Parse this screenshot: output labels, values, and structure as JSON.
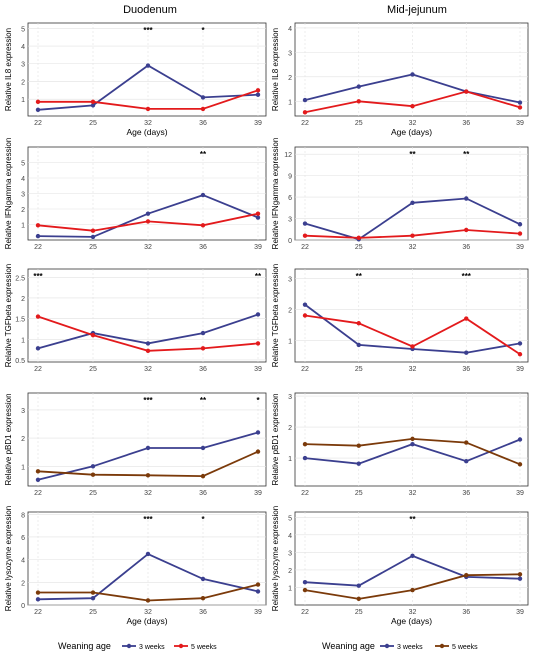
{
  "figure": {
    "col_titles": [
      "Duodenum",
      "Mid-jejunum"
    ],
    "legend": {
      "title": "Weaning age",
      "rows": [
        {
          "items": [
            {
              "label": "3 weeks",
              "color": "#3b3f8f"
            },
            {
              "label": "5 weeks",
              "color": "#e31a1c"
            }
          ]
        },
        {
          "items": [
            {
              "label": "3 weeks",
              "color": "#3b3f8f"
            },
            {
              "label": "5 weeks",
              "color": "#7b3a0a"
            }
          ]
        }
      ]
    }
  },
  "chart_data": [
    {
      "type": "line",
      "title": "Duodenum",
      "xlabel": "Age (days)",
      "ylabel": "Relative IL8 expression",
      "categories": [
        "22",
        "25",
        "32",
        "36",
        "39"
      ],
      "ylim": [
        0.05,
        5.3
      ],
      "yticks": [
        1,
        2,
        3,
        4,
        5
      ],
      "series": [
        {
          "name": "3 weeks",
          "color": "#3b3f8f",
          "values": [
            0.4,
            0.65,
            2.9,
            1.1,
            1.25
          ]
        },
        {
          "name": "5 weeks",
          "color": "#e31a1c",
          "values": [
            0.85,
            0.85,
            0.45,
            0.45,
            1.5
          ]
        }
      ],
      "annotations": [
        {
          "x": "32",
          "text": "***"
        },
        {
          "x": "36",
          "text": "*"
        }
      ]
    },
    {
      "type": "line",
      "title": "Mid-jejunum",
      "xlabel": "Age (days)",
      "ylabel": "Relative IL8 expression",
      "categories": [
        "22",
        "25",
        "32",
        "36",
        "39"
      ],
      "ylim": [
        0.4,
        4.2
      ],
      "yticks": [
        1,
        2,
        3,
        4
      ],
      "series": [
        {
          "name": "3 weeks",
          "color": "#3b3f8f",
          "values": [
            1.05,
            1.6,
            2.1,
            1.4,
            0.95
          ]
        },
        {
          "name": "5 weeks",
          "color": "#e31a1c",
          "values": [
            0.55,
            1.0,
            0.8,
            1.4,
            0.75
          ]
        }
      ],
      "annotations": []
    },
    {
      "type": "line",
      "title": "Duodenum",
      "xlabel": "",
      "ylabel": "Relative IFNgamma expression",
      "categories": [
        "22",
        "25",
        "32",
        "36",
        "39"
      ],
      "ylim": [
        0,
        6
      ],
      "yticks": [
        1,
        2,
        3,
        4,
        5
      ],
      "series": [
        {
          "name": "3 weeks",
          "color": "#3b3f8f",
          "values": [
            0.25,
            0.2,
            1.7,
            2.9,
            1.45
          ]
        },
        {
          "name": "5 weeks",
          "color": "#e31a1c",
          "values": [
            0.95,
            0.6,
            1.2,
            0.95,
            1.7
          ]
        }
      ],
      "annotations": [
        {
          "x": "36",
          "text": "**"
        }
      ]
    },
    {
      "type": "line",
      "title": "Mid-jejunum",
      "xlabel": "",
      "ylabel": "Relative IFNgamma expression",
      "categories": [
        "22",
        "25",
        "32",
        "36",
        "39"
      ],
      "ylim": [
        0,
        13
      ],
      "yticks": [
        0,
        3,
        6,
        9,
        12
      ],
      "series": [
        {
          "name": "3 weeks",
          "color": "#3b3f8f",
          "values": [
            2.3,
            0.1,
            5.2,
            5.8,
            2.2
          ]
        },
        {
          "name": "5 weeks",
          "color": "#e31a1c",
          "values": [
            0.6,
            0.3,
            0.6,
            1.4,
            0.9
          ]
        }
      ],
      "annotations": [
        {
          "x": "32",
          "text": "**"
        },
        {
          "x": "36",
          "text": "**"
        }
      ]
    },
    {
      "type": "line",
      "title": "Duodenum",
      "xlabel": "",
      "ylabel": "Relative TGFbeta expression",
      "categories": [
        "22",
        "25",
        "32",
        "36",
        "39"
      ],
      "ylim": [
        0.45,
        2.7
      ],
      "yticks": [
        0.5,
        1.0,
        1.5,
        2.0,
        2.5
      ],
      "series": [
        {
          "name": "3 weeks",
          "color": "#3b3f8f",
          "values": [
            0.78,
            1.15,
            0.9,
            1.15,
            1.6
          ]
        },
        {
          "name": "5 weeks",
          "color": "#e31a1c",
          "values": [
            1.55,
            1.1,
            0.72,
            0.78,
            0.9
          ]
        }
      ],
      "annotations": [
        {
          "x": "22",
          "text": "***"
        },
        {
          "x": "39",
          "text": "**"
        }
      ]
    },
    {
      "type": "line",
      "title": "Mid-jejunum",
      "xlabel": "",
      "ylabel": "Relative TGFbeta expression",
      "categories": [
        "22",
        "25",
        "32",
        "36",
        "39"
      ],
      "ylim": [
        0.3,
        3.3
      ],
      "yticks": [
        1,
        2,
        3
      ],
      "series": [
        {
          "name": "3 weeks",
          "color": "#3b3f8f",
          "values": [
            2.15,
            0.85,
            0.72,
            0.6,
            0.9
          ]
        },
        {
          "name": "5 weeks",
          "color": "#e31a1c",
          "values": [
            1.8,
            1.55,
            0.8,
            1.7,
            0.55
          ]
        }
      ],
      "annotations": [
        {
          "x": "25",
          "text": "**"
        },
        {
          "x": "36",
          "text": "***"
        }
      ]
    },
    {
      "type": "line",
      "title": "Duodenum",
      "xlabel": "",
      "ylabel": "Relative pBD1 expression",
      "categories": [
        "22",
        "25",
        "32",
        "36",
        "39"
      ],
      "ylim": [
        0.3,
        3.6
      ],
      "yticks": [
        1,
        2,
        3
      ],
      "series": [
        {
          "name": "3 weeks",
          "color": "#3b3f8f",
          "values": [
            0.52,
            1.0,
            1.65,
            1.65,
            2.2
          ]
        },
        {
          "name": "5 weeks",
          "color": "#7b3a0a",
          "values": [
            0.82,
            0.7,
            0.68,
            0.65,
            1.52
          ]
        }
      ],
      "annotations": [
        {
          "x": "32",
          "text": "***"
        },
        {
          "x": "36",
          "text": "**"
        },
        {
          "x": "39",
          "text": "*"
        }
      ]
    },
    {
      "type": "line",
      "title": "Mid-jejunum",
      "xlabel": "",
      "ylabel": "Relative pBD1 expression",
      "categories": [
        "22",
        "25",
        "32",
        "36",
        "39"
      ],
      "ylim": [
        0.1,
        3.1
      ],
      "yticks": [
        1,
        2,
        3
      ],
      "series": [
        {
          "name": "3 weeks",
          "color": "#3b3f8f",
          "values": [
            1.0,
            0.82,
            1.45,
            0.9,
            1.6
          ]
        },
        {
          "name": "5 weeks",
          "color": "#7b3a0a",
          "values": [
            1.45,
            1.4,
            1.62,
            1.5,
            0.8
          ]
        }
      ],
      "annotations": []
    },
    {
      "type": "line",
      "title": "Duodenum",
      "xlabel": "Age (days)",
      "ylabel": "Relative lysozyme expression",
      "categories": [
        "22",
        "25",
        "32",
        "36",
        "39"
      ],
      "ylim": [
        0,
        8.2
      ],
      "yticks": [
        0,
        2,
        4,
        6,
        8
      ],
      "series": [
        {
          "name": "3 weeks",
          "color": "#3b3f8f",
          "values": [
            0.5,
            0.6,
            4.5,
            2.3,
            1.2
          ]
        },
        {
          "name": "5 weeks",
          "color": "#7b3a0a",
          "values": [
            1.1,
            1.1,
            0.4,
            0.6,
            1.8
          ]
        }
      ],
      "annotations": [
        {
          "x": "32",
          "text": "***"
        },
        {
          "x": "36",
          "text": "*"
        }
      ]
    },
    {
      "type": "line",
      "title": "Mid-jejunum",
      "xlabel": "Age (days)",
      "ylabel": "Relative lysozyme expression",
      "categories": [
        "22",
        "25",
        "32",
        "36",
        "39"
      ],
      "ylim": [
        0,
        5.3
      ],
      "yticks": [
        1,
        2,
        3,
        4,
        5
      ],
      "series": [
        {
          "name": "3 weeks",
          "color": "#3b3f8f",
          "values": [
            1.3,
            1.1,
            2.8,
            1.6,
            1.5
          ]
        },
        {
          "name": "5 weeks",
          "color": "#7b3a0a",
          "values": [
            0.85,
            0.35,
            0.85,
            1.7,
            1.75
          ]
        }
      ],
      "annotations": [
        {
          "x": "32",
          "text": "**"
        }
      ]
    }
  ]
}
